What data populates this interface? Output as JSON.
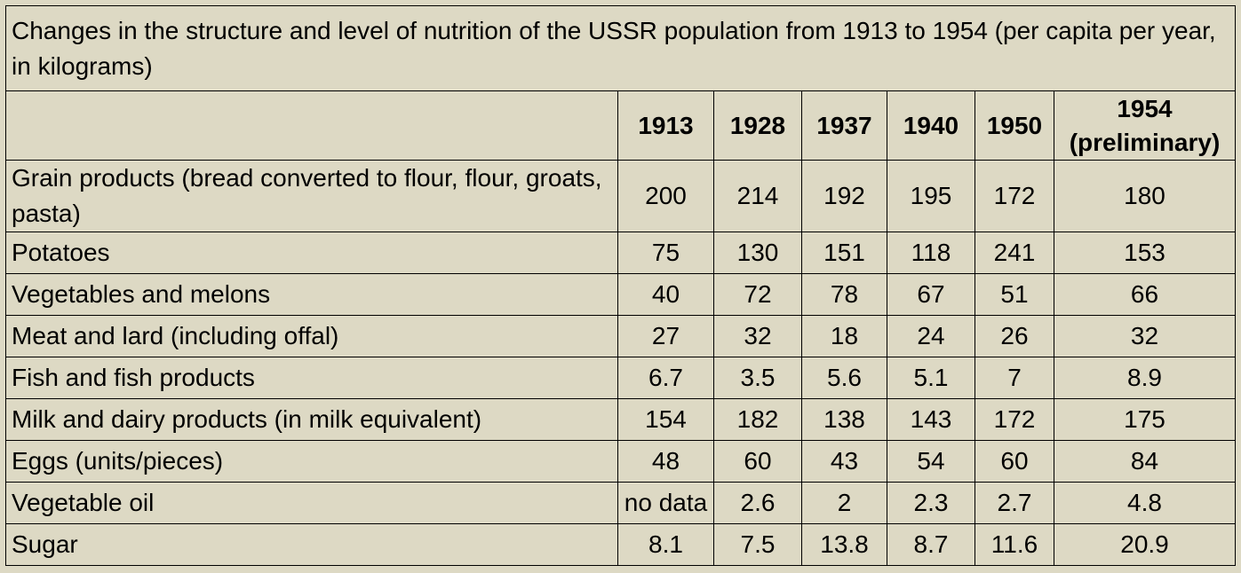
{
  "chart_data": {
    "type": "table",
    "title": "Changes in the structure and level of nutrition of the USSR population from 1913 to 1954 (per capita per year, in kilograms)",
    "header_corner": "",
    "columns": [
      "1913",
      "1928",
      "1937",
      "1940",
      "1950",
      "1954 (preliminary)"
    ],
    "column_header_lines": [
      [
        "1913"
      ],
      [
        "1928"
      ],
      [
        "1937"
      ],
      [
        "1940"
      ],
      [
        "1950"
      ],
      [
        "1954",
        "(preliminary)"
      ]
    ],
    "rows": [
      {
        "label": "Grain products (bread converted to flour, flour, groats, pasta)",
        "values": [
          "200",
          "214",
          "192",
          "195",
          "172",
          "180"
        ]
      },
      {
        "label": "Potatoes",
        "values": [
          "75",
          "130",
          "151",
          "118",
          "241",
          "153"
        ]
      },
      {
        "label": "Vegetables and melons",
        "values": [
          "40",
          "72",
          "78",
          "67",
          "51",
          "66"
        ]
      },
      {
        "label": "Meat and lard (including offal)",
        "values": [
          "27",
          "32",
          "18",
          "24",
          "26",
          "32"
        ]
      },
      {
        "label": "Fish and fish products",
        "values": [
          "6.7",
          "3.5",
          "5.6",
          "5.1",
          "7",
          "8.9"
        ]
      },
      {
        "label": "Milk and dairy products (in milk equivalent)",
        "values": [
          "154",
          "182",
          "138",
          "143",
          "172",
          "175"
        ]
      },
      {
        "label": "Eggs (units/pieces)",
        "values": [
          "48",
          "60",
          "43",
          "54",
          "60",
          "84"
        ]
      },
      {
        "label": "Vegetable oil",
        "values": [
          "no data",
          "2.6",
          "2",
          "2.3",
          "2.7",
          "4.8"
        ]
      },
      {
        "label": "Sugar",
        "values": [
          "8.1",
          "7.5",
          "13.8",
          "8.7",
          "11.6",
          "20.9"
        ]
      }
    ]
  },
  "colors": {
    "background": "#ddd9c4",
    "border": "#000000",
    "text": "#000000"
  }
}
